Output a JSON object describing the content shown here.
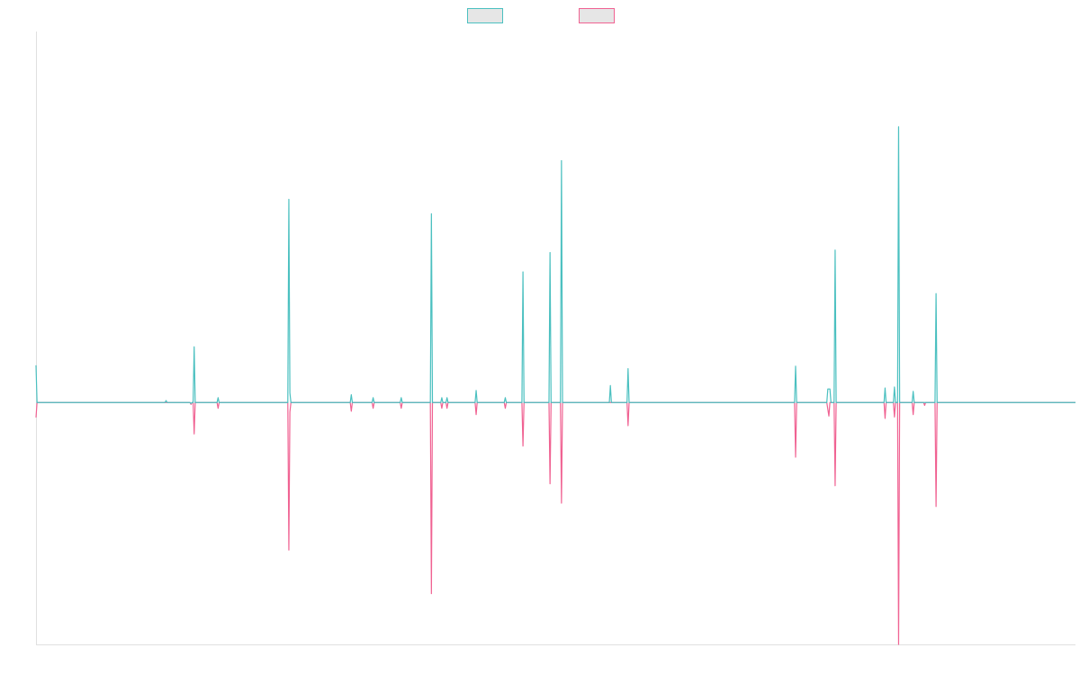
{
  "chart_data": {
    "type": "line",
    "x_count": 1000,
    "series": [
      {
        "color": "#4bc0c0",
        "points": [
          [
            0,
            770
          ],
          [
            1,
            0
          ],
          [
            2,
            0
          ],
          [
            124,
            0
          ],
          [
            125,
            40
          ],
          [
            126,
            0
          ],
          [
            148,
            0
          ],
          [
            149,
            -20
          ],
          [
            150,
            0
          ],
          [
            151,
            0
          ],
          [
            152,
            1150
          ],
          [
            153,
            0
          ],
          [
            174,
            0
          ],
          [
            175,
            100
          ],
          [
            176,
            0
          ],
          [
            242,
            0
          ],
          [
            243,
            4200
          ],
          [
            244,
            200
          ],
          [
            245,
            0
          ],
          [
            302,
            0
          ],
          [
            303,
            160
          ],
          [
            304,
            0
          ],
          [
            305,
            0
          ],
          [
            323,
            0
          ],
          [
            324,
            100
          ],
          [
            325,
            0
          ],
          [
            350,
            0
          ],
          [
            351,
            100
          ],
          [
            352,
            0
          ],
          [
            379,
            0
          ],
          [
            380,
            3900
          ],
          [
            381,
            0
          ],
          [
            389,
            0
          ],
          [
            390,
            100
          ],
          [
            391,
            0
          ],
          [
            394,
            0
          ],
          [
            395,
            100
          ],
          [
            396,
            0
          ],
          [
            422,
            0
          ],
          [
            423,
            250
          ],
          [
            424,
            0
          ],
          [
            450,
            0
          ],
          [
            451,
            100
          ],
          [
            452,
            0
          ],
          [
            467,
            0
          ],
          [
            468,
            2700
          ],
          [
            469,
            0
          ],
          [
            493,
            0
          ],
          [
            494,
            3100
          ],
          [
            495,
            0
          ],
          [
            504,
            0
          ],
          [
            505,
            5000
          ],
          [
            506,
            0
          ],
          [
            551,
            0
          ],
          [
            552,
            350
          ],
          [
            553,
            0
          ],
          [
            568,
            0
          ],
          [
            569,
            700
          ],
          [
            570,
            0
          ],
          [
            729,
            0
          ],
          [
            730,
            750
          ],
          [
            731,
            0
          ],
          [
            760,
            0
          ],
          [
            761,
            280
          ],
          [
            763,
            280
          ],
          [
            764,
            0
          ],
          [
            767,
            0
          ],
          [
            768,
            3150
          ],
          [
            769,
            0
          ],
          [
            815,
            0
          ],
          [
            816,
            300
          ],
          [
            817,
            0
          ],
          [
            824,
            0
          ],
          [
            825,
            320
          ],
          [
            826,
            0
          ],
          [
            828,
            0
          ],
          [
            829,
            5700
          ],
          [
            830,
            0
          ],
          [
            842,
            0
          ],
          [
            843,
            230
          ],
          [
            844,
            0
          ],
          [
            853,
            0
          ],
          [
            854,
            0
          ],
          [
            855,
            0
          ],
          [
            864,
            0
          ],
          [
            865,
            2250
          ],
          [
            866,
            0
          ],
          [
            999,
            0
          ]
        ]
      },
      {
        "color": "#f06292",
        "points": [
          [
            0,
            -310
          ],
          [
            1,
            0
          ],
          [
            2,
            0
          ],
          [
            148,
            0
          ],
          [
            149,
            -40
          ],
          [
            150,
            0
          ],
          [
            151,
            0
          ],
          [
            152,
            -650
          ],
          [
            153,
            0
          ],
          [
            174,
            0
          ],
          [
            175,
            -120
          ],
          [
            176,
            0
          ],
          [
            242,
            0
          ],
          [
            243,
            -3050
          ],
          [
            244,
            -200
          ],
          [
            245,
            0
          ],
          [
            302,
            0
          ],
          [
            303,
            -180
          ],
          [
            304,
            0
          ],
          [
            305,
            0
          ],
          [
            323,
            0
          ],
          [
            324,
            -120
          ],
          [
            325,
            0
          ],
          [
            350,
            0
          ],
          [
            351,
            -120
          ],
          [
            352,
            0
          ],
          [
            379,
            0
          ],
          [
            380,
            -3950
          ],
          [
            381,
            0
          ],
          [
            389,
            0
          ],
          [
            390,
            -120
          ],
          [
            391,
            0
          ],
          [
            394,
            0
          ],
          [
            395,
            -120
          ],
          [
            396,
            0
          ],
          [
            422,
            0
          ],
          [
            423,
            -250
          ],
          [
            424,
            0
          ],
          [
            450,
            0
          ],
          [
            451,
            -120
          ],
          [
            452,
            0
          ],
          [
            467,
            0
          ],
          [
            468,
            -900
          ],
          [
            469,
            0
          ],
          [
            493,
            0
          ],
          [
            494,
            -1680
          ],
          [
            495,
            0
          ],
          [
            504,
            0
          ],
          [
            505,
            -2080
          ],
          [
            506,
            0
          ],
          [
            568,
            0
          ],
          [
            569,
            -480
          ],
          [
            570,
            0
          ],
          [
            729,
            0
          ],
          [
            730,
            -1130
          ],
          [
            731,
            0
          ],
          [
            760,
            0
          ],
          [
            762,
            -280
          ],
          [
            763,
            0
          ],
          [
            767,
            0
          ],
          [
            768,
            -1720
          ],
          [
            769,
            0
          ],
          [
            815,
            0
          ],
          [
            816,
            -330
          ],
          [
            817,
            0
          ],
          [
            824,
            0
          ],
          [
            825,
            -300
          ],
          [
            826,
            0
          ],
          [
            828,
            0
          ],
          [
            829,
            -5000
          ],
          [
            830,
            0
          ],
          [
            842,
            0
          ],
          [
            843,
            -250
          ],
          [
            844,
            0
          ],
          [
            853,
            0
          ],
          [
            854,
            -60
          ],
          [
            855,
            0
          ],
          [
            864,
            0
          ],
          [
            865,
            -2150
          ],
          [
            866,
            0
          ],
          [
            999,
            0
          ]
        ]
      }
    ],
    "ylim": [
      -5000,
      7650
    ],
    "grid": false,
    "legend_position": "top-center"
  }
}
